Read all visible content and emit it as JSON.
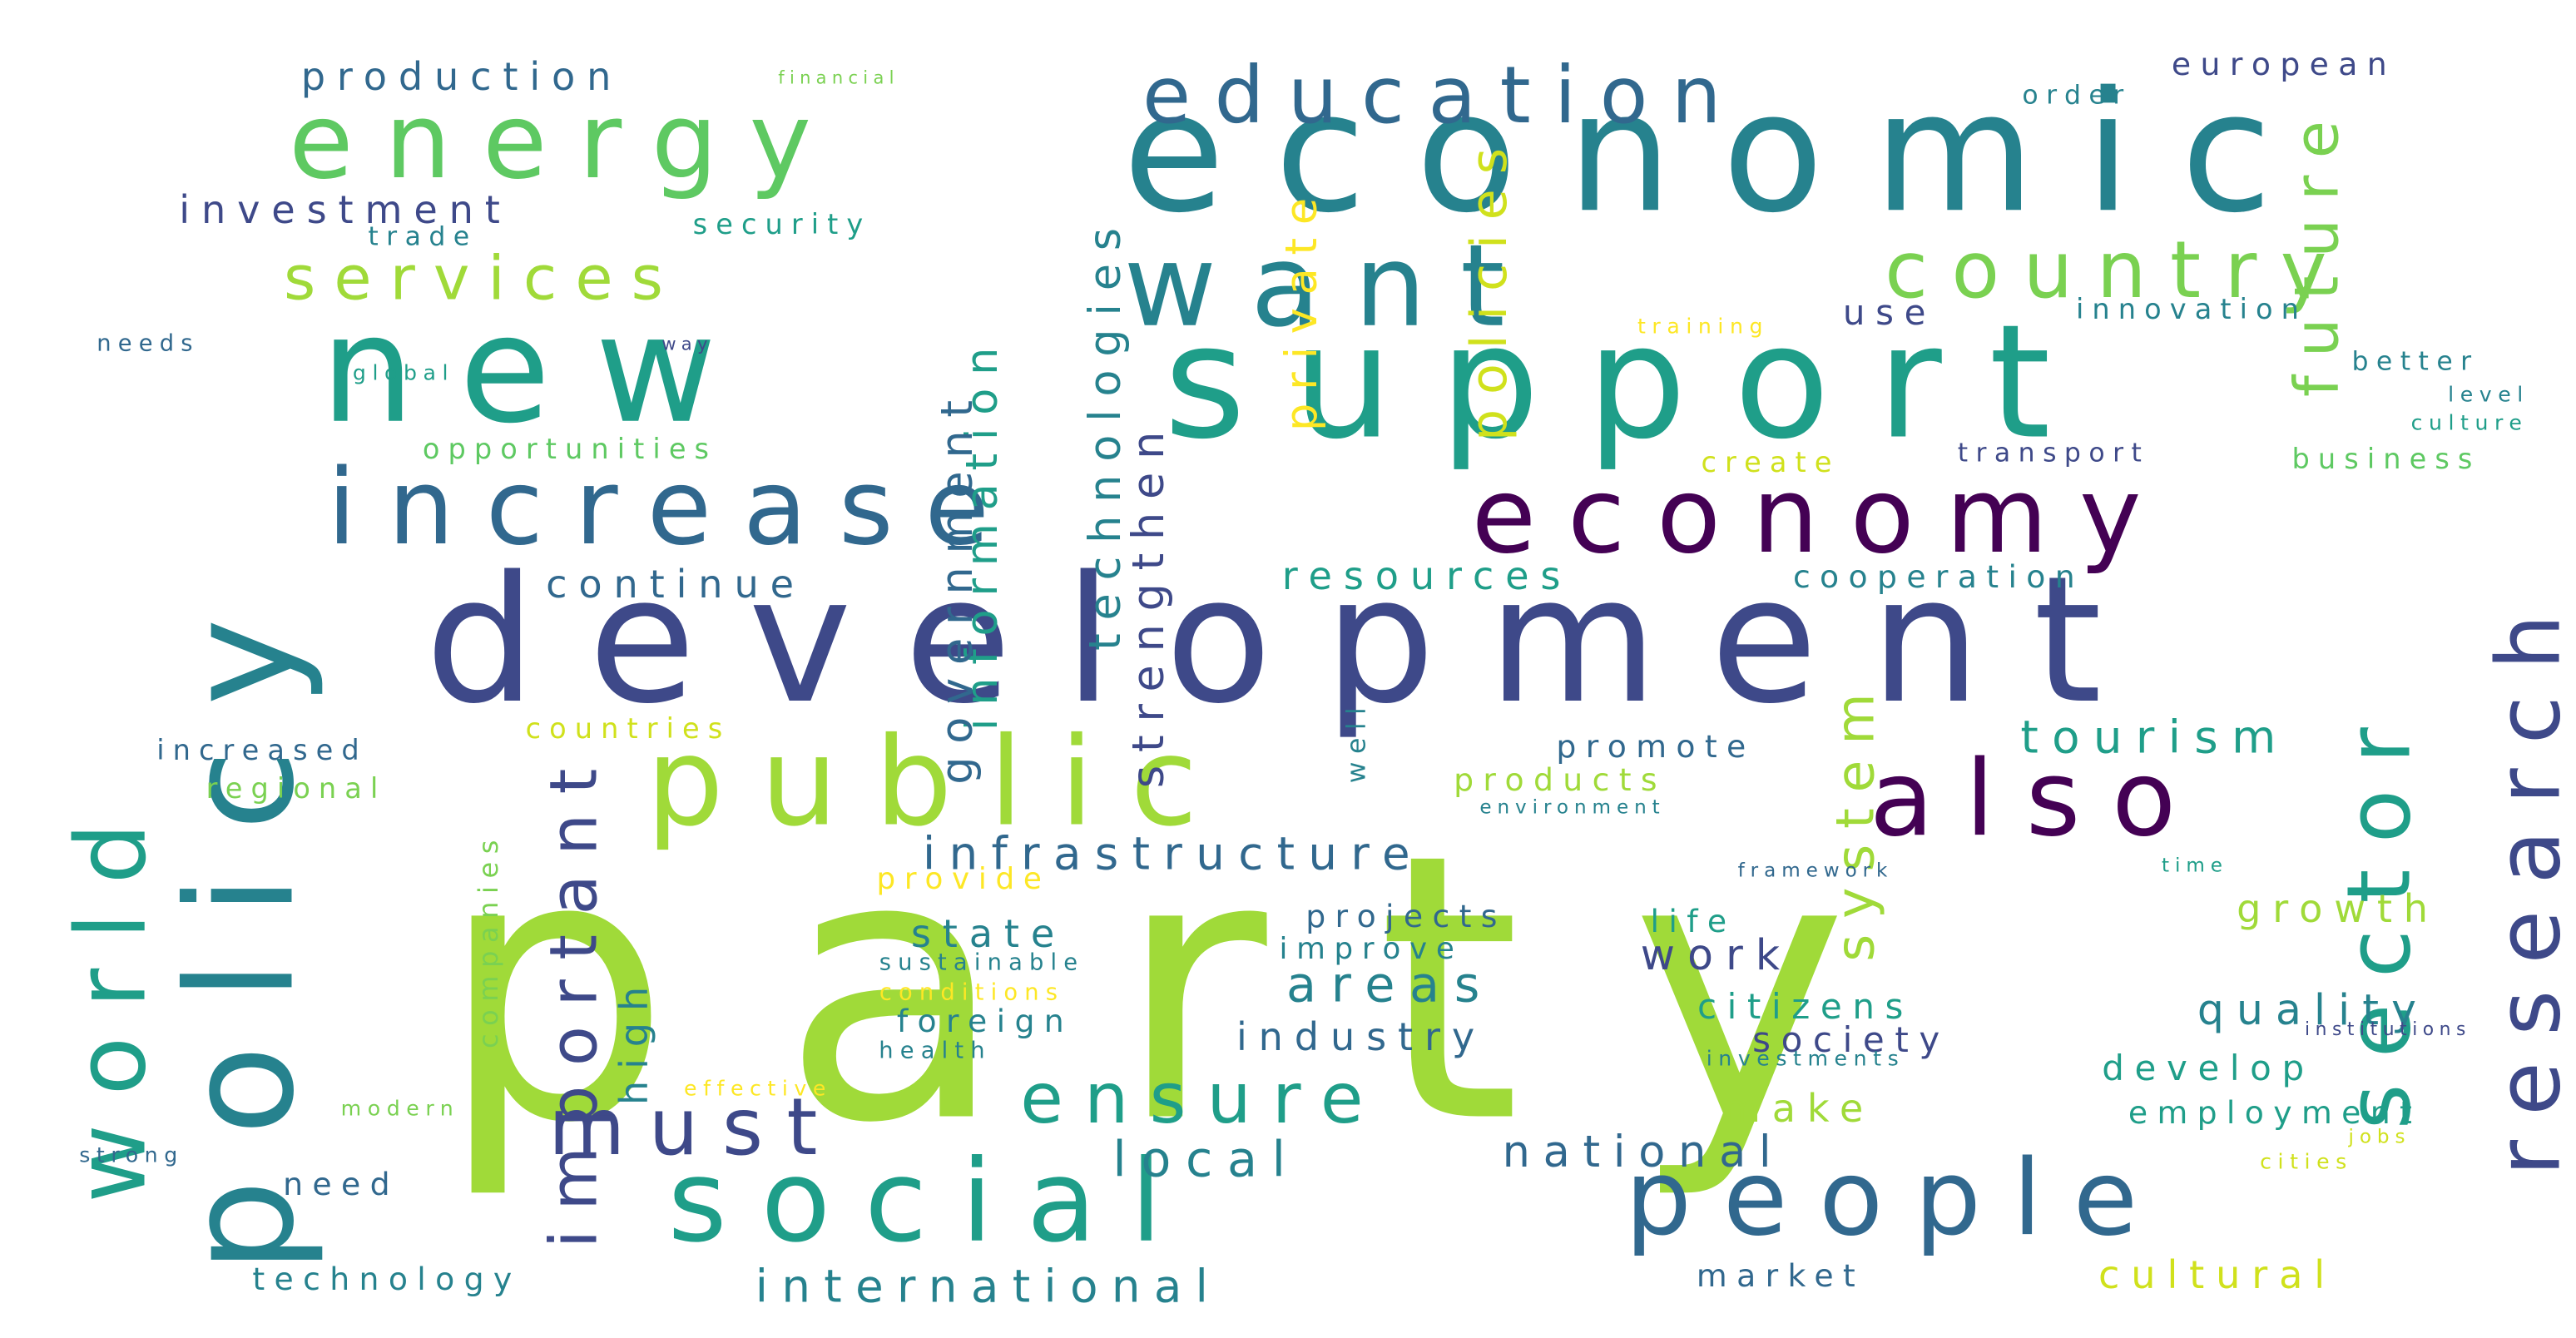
{
  "palette": {
    "lime": "#a0da39",
    "green": "#5ec962",
    "teal": "#1f9e89",
    "blue_teal": "#26828e",
    "slate_blue": "#31688e",
    "indigo": "#3e4989",
    "dark_purple": "#440154",
    "yellow": "#fde725",
    "light_yellow": "#d0e11c",
    "light_green": "#7ad151",
    "background": "#ffffff"
  },
  "words": [
    {
      "text": "party",
      "color": "#a0da39"
    },
    {
      "text": "development",
      "color": "#3e4989"
    },
    {
      "text": "new",
      "color": "#1f9e89"
    },
    {
      "text": "economic",
      "color": "#26828e"
    },
    {
      "text": "support",
      "color": "#1f9e89"
    },
    {
      "text": "increase",
      "color": "#31688e"
    },
    {
      "text": "economy",
      "color": "#440154"
    },
    {
      "text": "want",
      "color": "#26828e"
    },
    {
      "text": "public",
      "color": "#a0da39"
    },
    {
      "text": "social",
      "color": "#1f9e89"
    },
    {
      "text": "also",
      "color": "#440154"
    },
    {
      "text": "energy",
      "color": "#5ec962"
    },
    {
      "text": "people",
      "color": "#31688e"
    },
    {
      "text": "country",
      "color": "#7ad151"
    },
    {
      "text": "education",
      "color": "#31688e"
    },
    {
      "text": "must",
      "color": "#3e4989"
    },
    {
      "text": "ensure",
      "color": "#1f9e89"
    },
    {
      "text": "policy",
      "color": "#26828e"
    },
    {
      "text": "world",
      "color": "#1f9e89"
    },
    {
      "text": "research",
      "color": "#3e4989"
    },
    {
      "text": "sector",
      "color": "#1f9e89"
    },
    {
      "text": "services",
      "color": "#a0da39"
    },
    {
      "text": "production",
      "color": "#31688e"
    },
    {
      "text": "investment",
      "color": "#3e4989"
    },
    {
      "text": "european",
      "color": "#3e4989"
    },
    {
      "text": "future",
      "color": "#7ad151"
    },
    {
      "text": "infrastructure",
      "color": "#31688e"
    },
    {
      "text": "tourism",
      "color": "#1f9e89"
    },
    {
      "text": "continue",
      "color": "#31688e"
    },
    {
      "text": "resources",
      "color": "#1f9e89"
    },
    {
      "text": "cooperation",
      "color": "#26828e"
    },
    {
      "text": "international",
      "color": "#26828e"
    },
    {
      "text": "national",
      "color": "#31688e"
    },
    {
      "text": "local",
      "color": "#26828e"
    },
    {
      "text": "important",
      "color": "#3e4989"
    },
    {
      "text": "system",
      "color": "#a0da39"
    },
    {
      "text": "growth",
      "color": "#a0da39"
    },
    {
      "text": "quality",
      "color": "#26828e"
    },
    {
      "text": "cultural",
      "color": "#d0e11c"
    },
    {
      "text": "areas",
      "color": "#26828e"
    },
    {
      "text": "work",
      "color": "#3e4989"
    },
    {
      "text": "industry",
      "color": "#31688e"
    },
    {
      "text": "citizens",
      "color": "#1f9e89"
    },
    {
      "text": "society",
      "color": "#3e4989"
    },
    {
      "text": "develop",
      "color": "#1f9e89"
    },
    {
      "text": "employment",
      "color": "#1f9e89"
    },
    {
      "text": "make",
      "color": "#a0da39"
    },
    {
      "text": "market",
      "color": "#31688e"
    },
    {
      "text": "technology",
      "color": "#26828e"
    },
    {
      "text": "need",
      "color": "#31688e"
    },
    {
      "text": "promote",
      "color": "#31688e"
    },
    {
      "text": "products",
      "color": "#a0da39"
    },
    {
      "text": "countries",
      "color": "#d0e11c"
    },
    {
      "text": "regional",
      "color": "#7ad151"
    },
    {
      "text": "increased",
      "color": "#31688e"
    },
    {
      "text": "opportunities",
      "color": "#5ec962"
    },
    {
      "text": "security",
      "color": "#1f9e89"
    },
    {
      "text": "trade",
      "color": "#26828e"
    },
    {
      "text": "needs",
      "color": "#31688e"
    },
    {
      "text": "global",
      "color": "#1f9e89"
    },
    {
      "text": "way",
      "color": "#3e4989"
    },
    {
      "text": "financial",
      "color": "#7ad151"
    },
    {
      "text": "order",
      "color": "#26828e"
    },
    {
      "text": "use",
      "color": "#3e4989"
    },
    {
      "text": "innovation",
      "color": "#26828e"
    },
    {
      "text": "better",
      "color": "#26828e"
    },
    {
      "text": "level",
      "color": "#26828e"
    },
    {
      "text": "culture",
      "color": "#1f9e89"
    },
    {
      "text": "business",
      "color": "#5ec962"
    },
    {
      "text": "transport",
      "color": "#3e4989"
    },
    {
      "text": "create",
      "color": "#d0e11c"
    },
    {
      "text": "training",
      "color": "#fde725"
    },
    {
      "text": "private",
      "color": "#fde725"
    },
    {
      "text": "policies",
      "color": "#d0e11c"
    },
    {
      "text": "technologies",
      "color": "#26828e"
    },
    {
      "text": "strengthen",
      "color": "#3e4989"
    },
    {
      "text": "information",
      "color": "#1f9e89"
    },
    {
      "text": "government",
      "color": "#31688e"
    },
    {
      "text": "provide",
      "color": "#fde725"
    },
    {
      "text": "state",
      "color": "#26828e"
    },
    {
      "text": "sustainable",
      "color": "#26828e"
    },
    {
      "text": "conditions",
      "color": "#fde725"
    },
    {
      "text": "foreign",
      "color": "#26828e"
    },
    {
      "text": "health",
      "color": "#26828e"
    },
    {
      "text": "projects",
      "color": "#31688e"
    },
    {
      "text": "improve",
      "color": "#26828e"
    },
    {
      "text": "life",
      "color": "#1f9e89"
    },
    {
      "text": "high",
      "color": "#26828e"
    },
    {
      "text": "companies",
      "color": "#7ad151"
    },
    {
      "text": "modern",
      "color": "#7ad151"
    },
    {
      "text": "strong",
      "color": "#31688e"
    },
    {
      "text": "effective",
      "color": "#fde725"
    },
    {
      "text": "well",
      "color": "#26828e"
    },
    {
      "text": "environment",
      "color": "#26828e"
    },
    {
      "text": "framework",
      "color": "#31688e"
    },
    {
      "text": "time",
      "color": "#1f9e89"
    },
    {
      "text": "institutions",
      "color": "#3e4989"
    },
    {
      "text": "investments",
      "color": "#26828e"
    },
    {
      "text": "jobs",
      "color": "#d0e11c"
    },
    {
      "text": "cities",
      "color": "#d0e11c"
    }
  ]
}
